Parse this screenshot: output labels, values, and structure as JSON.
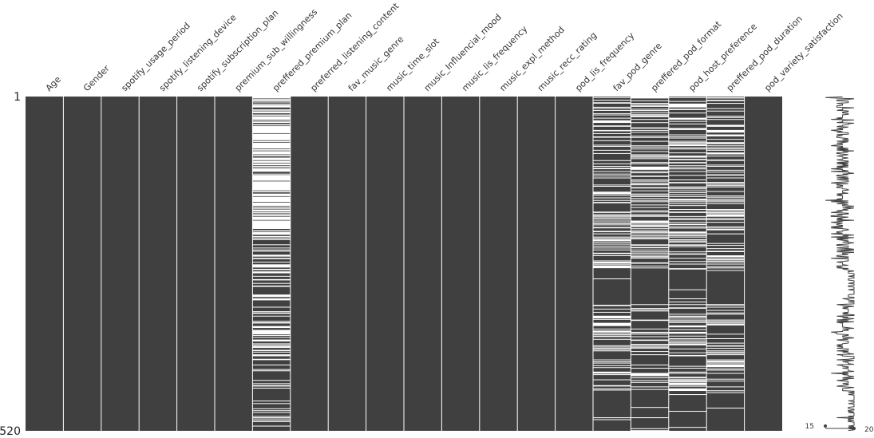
{
  "chart_data": {
    "type": "heatmap",
    "title": "",
    "columns": [
      "Age",
      "Gender",
      "spotify_usage_period",
      "spotify_listening_device",
      "spotify_subscription_plan",
      "premium_sub_willingness",
      "preffered_premium_plan",
      "preferred_listening_content",
      "fav_music_genre",
      "music_time_slot",
      "music_Influencial_mood",
      "music_lis_frequency",
      "music_expl_method",
      "music_recc_rating",
      "pod_lis_frequency",
      "fav_pod_genre",
      "preffered_pod_format",
      "pod_host_preference",
      "preffered_pod_duration",
      "pod_variety_satisfaction"
    ],
    "row_labels": {
      "first": "1",
      "last": "520"
    },
    "n_rows": 520,
    "missing_fraction": [
      0,
      0,
      0,
      0,
      0,
      0,
      0.4,
      0,
      0,
      0,
      0,
      0,
      0,
      0,
      0,
      0.26,
      0.26,
      0.27,
      0.27,
      0
    ],
    "sparkline": {
      "min_label": "15",
      "max_label": "20",
      "min": 15,
      "max": 20
    },
    "colors": {
      "filled": "#404040",
      "missing": "#ffffff",
      "line": "#404040"
    }
  }
}
